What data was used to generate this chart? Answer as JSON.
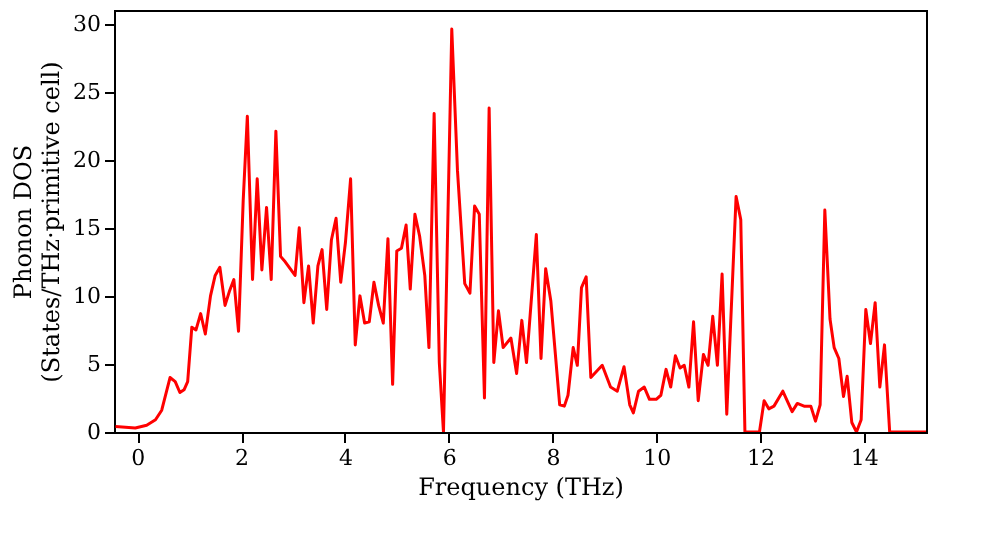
{
  "chart_data": {
    "type": "line",
    "xlabel": "Frequency (THz)",
    "ylabel": "Phonon DOS\n(States/THz·primitive cell)",
    "xlim": [
      -0.45,
      15.2
    ],
    "ylim": [
      0,
      31
    ],
    "xticks": [
      0,
      2,
      4,
      6,
      8,
      10,
      12,
      14
    ],
    "yticks": [
      0,
      5,
      10,
      15,
      20,
      25,
      30
    ],
    "grid": false,
    "series": [
      {
        "color": "#ff0000",
        "x": [
          -0.42,
          -0.04,
          0.18,
          0.35,
          0.47,
          0.63,
          0.73,
          0.82,
          0.9,
          0.97,
          1.05,
          1.13,
          1.22,
          1.31,
          1.41,
          1.5,
          1.59,
          1.69,
          1.78,
          1.86,
          1.95,
          2.04,
          2.12,
          2.22,
          2.31,
          2.4,
          2.49,
          2.58,
          2.67,
          2.76,
          2.85,
          3.04,
          3.12,
          3.21,
          3.3,
          3.39,
          3.48,
          3.56,
          3.65,
          3.74,
          3.83,
          3.92,
          4.01,
          4.11,
          4.2,
          4.29,
          4.38,
          4.47,
          4.56,
          4.65,
          4.74,
          4.83,
          4.92,
          5.0,
          5.09,
          5.18,
          5.26,
          5.35,
          5.44,
          5.54,
          5.62,
          5.72,
          5.82,
          5.9,
          6.06,
          6.17,
          6.31,
          6.41,
          6.5,
          6.59,
          6.69,
          6.78,
          6.87,
          6.96,
          7.05,
          7.2,
          7.31,
          7.41,
          7.5,
          7.69,
          7.78,
          7.87,
          7.97,
          8.14,
          8.23,
          8.3,
          8.4,
          8.48,
          8.56,
          8.65,
          8.74,
          8.96,
          9.12,
          9.25,
          9.38,
          9.49,
          9.56,
          9.66,
          9.77,
          9.87,
          10.0,
          10.09,
          10.19,
          10.28,
          10.37,
          10.46,
          10.54,
          10.63,
          10.72,
          10.81,
          10.91,
          11.0,
          11.09,
          11.18,
          11.27,
          11.36,
          11.54,
          11.63,
          11.71,
          11.99,
          12.08,
          12.17,
          12.27,
          12.44,
          12.62,
          12.72,
          12.85,
          12.98,
          13.07,
          13.16,
          13.25,
          13.35,
          13.43,
          13.52,
          13.61,
          13.68,
          13.77,
          13.86,
          13.95,
          14.04,
          14.13,
          14.22,
          14.31,
          14.4,
          14.5,
          15.2
        ],
        "values": [
          0.4,
          0.3,
          0.5,
          0.9,
          1.6,
          4.0,
          3.7,
          2.9,
          3.1,
          3.7,
          7.7,
          7.5,
          8.7,
          7.2,
          10.0,
          11.5,
          12.1,
          9.3,
          10.4,
          11.2,
          7.4,
          17.0,
          23.2,
          11.2,
          18.6,
          11.9,
          16.5,
          11.2,
          22.1,
          12.9,
          12.5,
          11.5,
          15.0,
          9.5,
          12.2,
          8.0,
          12.2,
          13.4,
          9.0,
          14.1,
          15.7,
          11.0,
          13.9,
          18.6,
          6.4,
          10.0,
          8.0,
          8.1,
          11.0,
          9.3,
          8.0,
          14.2,
          3.5,
          13.3,
          13.5,
          15.2,
          10.5,
          16.0,
          14.4,
          11.5,
          6.2,
          23.4,
          5.1,
          0,
          29.6,
          19.2,
          10.9,
          10.2,
          16.6,
          16.0,
          2.5,
          23.8,
          5.1,
          8.9,
          6.2,
          6.9,
          4.3,
          8.2,
          5.1,
          14.5,
          5.4,
          12.0,
          9.6,
          2.0,
          1.9,
          2.7,
          6.2,
          4.9,
          10.6,
          11.4,
          4.0,
          4.9,
          3.3,
          3.0,
          4.8,
          2.0,
          1.4,
          3.0,
          3.3,
          2.4,
          2.4,
          2.7,
          4.6,
          3.3,
          5.6,
          4.7,
          4.9,
          3.3,
          8.1,
          2.3,
          5.7,
          4.9,
          8.5,
          4.9,
          11.6,
          1.3,
          17.3,
          15.6,
          0,
          0,
          2.3,
          1.7,
          1.9,
          3.0,
          1.5,
          2.1,
          1.9,
          1.9,
          0.8,
          2.0,
          16.3,
          8.3,
          6.2,
          5.4,
          2.6,
          4.1,
          0.7,
          0,
          0.9,
          9.0,
          6.5,
          9.5,
          3.3,
          6.4,
          0,
          0
        ]
      }
    ]
  }
}
